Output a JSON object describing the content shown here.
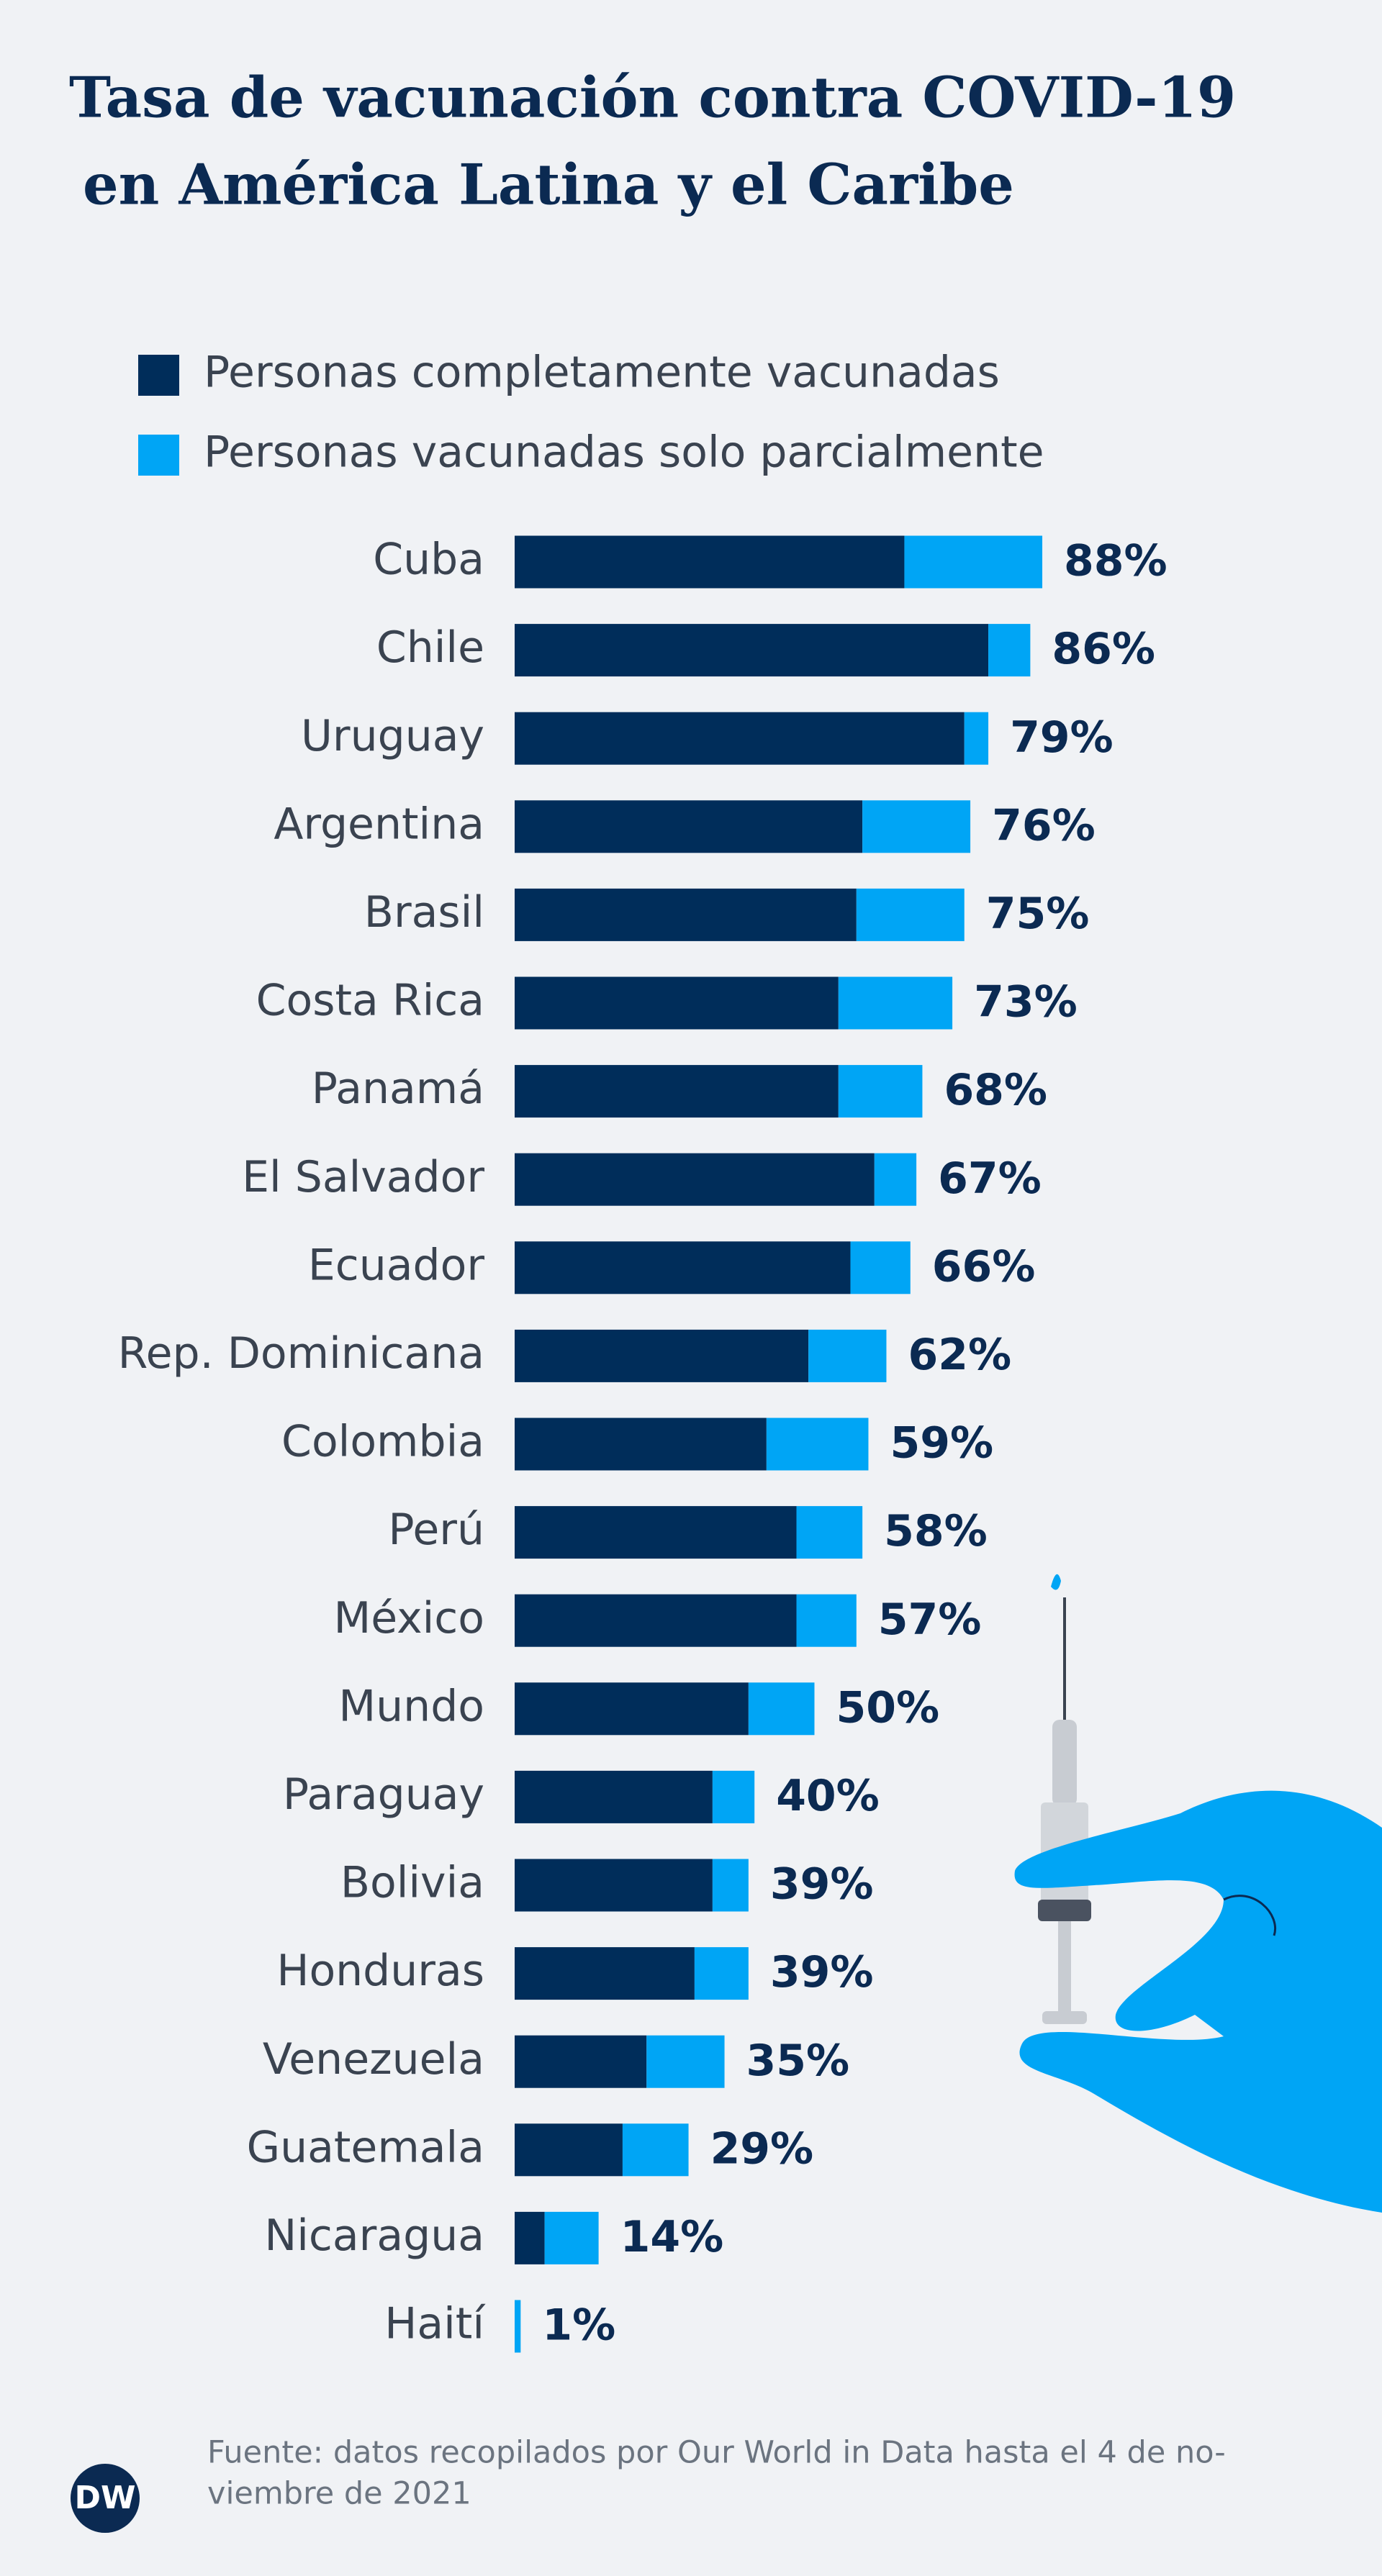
{
  "chart_data": {
    "type": "stacked-barh",
    "title": [
      "Tasa de vacunación contra COVID-19",
      "en América Latina y el Caribe"
    ],
    "categories": [
      "Cuba",
      "Chile",
      "Uruguay",
      "Argentina",
      "Brasil",
      "Costa Rica",
      "Panamá",
      "El Salvador",
      "Ecuador",
      "Rep. Dominicana",
      "Colombia",
      "Perú",
      "México",
      "Mundo",
      "Paraguay",
      "Bolivia",
      "Honduras",
      "Venezuela",
      "Guatemala",
      "Nicaragua",
      "Haití"
    ],
    "series": [
      {
        "name": "Personas completamente vacunadas",
        "color": "#002d5a",
        "values": [
          65,
          79,
          75,
          58,
          57,
          54,
          54,
          60,
          56,
          49,
          42,
          47,
          47,
          39,
          33,
          33,
          30,
          22,
          18,
          5,
          0
        ]
      },
      {
        "name": "Personas vacunadas solo parcialmente",
        "color": "#00a5f5",
        "values": [
          23,
          7,
          4,
          18,
          18,
          19,
          14,
          7,
          10,
          13,
          17,
          11,
          10,
          11,
          7,
          6,
          9,
          13,
          11,
          9,
          1
        ]
      }
    ],
    "totals": [
      88,
      86,
      79,
      76,
      75,
      73,
      68,
      67,
      66,
      62,
      59,
      58,
      57,
      50,
      40,
      39,
      39,
      35,
      29,
      14,
      1
    ],
    "total_labels": [
      "88%",
      "86%",
      "79%",
      "76%",
      "75%",
      "73%",
      "68%",
      "67%",
      "66%",
      "62%",
      "59%",
      "58%",
      "57%",
      "50%",
      "40%",
      "39%",
      "39%",
      "35%",
      "29%",
      "14%",
      "1%"
    ],
    "source": [
      "Fuente: datos recopilados por Our World in Data hasta el 4 de no-",
      "viembre de 2021"
    ],
    "logo": "DW"
  }
}
